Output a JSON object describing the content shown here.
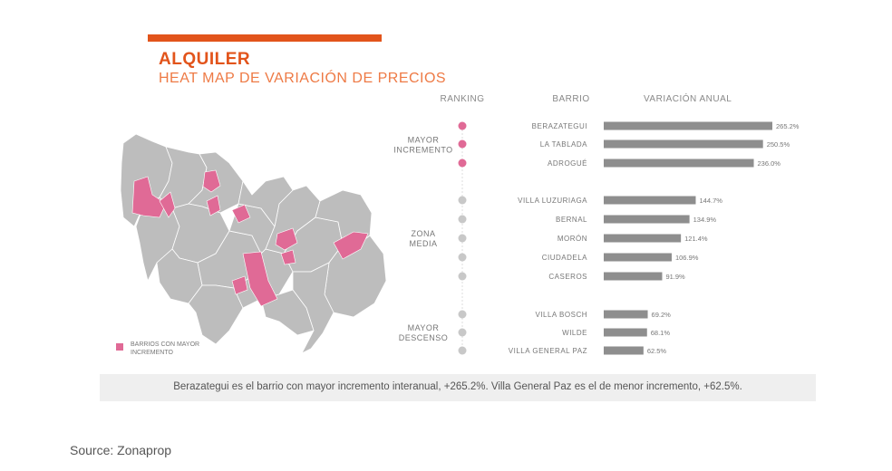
{
  "header": {
    "title": "ALQUILER",
    "subtitle": "HEAT MAP DE VARIACIÓN DE PRECIOS"
  },
  "colors": {
    "accent": "#e2541b",
    "highlight": "#e06a96",
    "neutral": "#bdbdbd",
    "bar": "#8e8e8e"
  },
  "legend": {
    "label": "BARRIOS CON MAYOR INCREMENTO"
  },
  "chart_data": {
    "type": "bar",
    "orientation": "horizontal",
    "column_headers": [
      "RANKING",
      "BARRIO",
      "VARIACIÓN ANUAL"
    ],
    "groups": [
      {
        "label": "MAYOR INCREMENTO",
        "rows": [
          0,
          1,
          2
        ]
      },
      {
        "label": "ZONA MEDIA",
        "rows": [
          3,
          4,
          5,
          6,
          7
        ]
      },
      {
        "label": "MAYOR DESCENSO",
        "rows": [
          8,
          9,
          10
        ]
      }
    ],
    "categories": [
      "BERAZATEGUI",
      "LA TABLADA",
      "ADROGUÉ",
      "VILLA LUZURIAGA",
      "BERNAL",
      "MORÓN",
      "CIUDADELA",
      "CASEROS",
      "VILLA BOSCH",
      "WILDE",
      "VILLA GENERAL PAZ"
    ],
    "values": [
      265.2,
      250.5,
      236.0,
      144.7,
      134.9,
      121.4,
      106.9,
      91.9,
      69.2,
      68.1,
      62.5
    ],
    "value_labels": [
      "265.2%",
      "250.5%",
      "236.0%",
      "144.7%",
      "134.9%",
      "121.4%",
      "106.9%",
      "91.9%",
      "69.2%",
      "68.1%",
      "62.5%"
    ],
    "highlighted": [
      true,
      true,
      true,
      false,
      false,
      false,
      false,
      false,
      false,
      false,
      false
    ],
    "xlim": [
      0,
      265.2
    ]
  },
  "note": "Berazategui es el barrio con mayor incremento interanual, +265.2%. Villa General Paz es el de menor incremento, +62.5%.",
  "source": "Source: Zonaprop"
}
